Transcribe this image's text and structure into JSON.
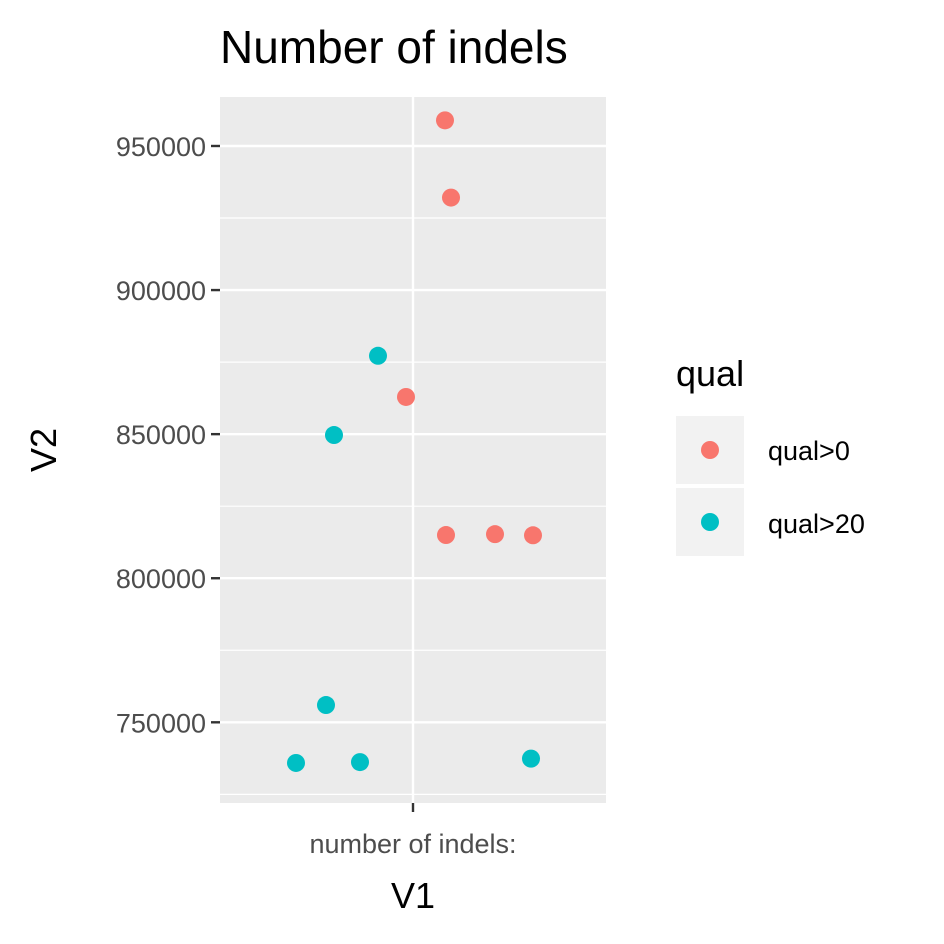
{
  "chart_data": {
    "type": "scatter",
    "title": "Number of indels",
    "xlabel": "V1",
    "ylabel": "V2",
    "x_categories": [
      "number of indels:"
    ],
    "y_ticks": [
      750000,
      800000,
      850000,
      900000,
      950000
    ],
    "ylim": [
      722000,
      967000
    ],
    "grid": true,
    "legend": {
      "title": "qual",
      "position": "right",
      "entries": [
        {
          "label": "qual>0",
          "color": "#F8766D"
        },
        {
          "label": "qual>20",
          "color": "#00BFC4"
        }
      ]
    },
    "series": [
      {
        "name": "qual>0",
        "color": "#F8766D",
        "x": [
          "number of indels:",
          "number of indels:",
          "number of indels:",
          "number of indels:",
          "number of indels:",
          "number of indels:"
        ],
        "y": [
          958900,
          932100,
          862900,
          815000,
          815300,
          814900
        ]
      },
      {
        "name": "qual>20",
        "color": "#00BFC4",
        "x": [
          "number of indels:",
          "number of indels:",
          "number of indels:",
          "number of indels:",
          "number of indels:",
          "number of indels:"
        ],
        "y": [
          877200,
          849700,
          756000,
          735900,
          736200,
          737400
        ]
      }
    ]
  }
}
